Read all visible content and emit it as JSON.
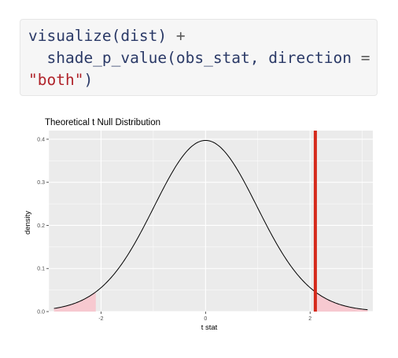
{
  "code": {
    "line1": {
      "fn": "visualize",
      "open": "(",
      "arg": "dist",
      "close": ")",
      "op": " +"
    },
    "line2": {
      "indent": "  ",
      "fn": "shade_p_value",
      "open": "(",
      "arg": "obs_stat,",
      "space": " ",
      "param": "direction",
      "eq": " ="
    },
    "line3": {
      "value": "\"both\"",
      "close": ")"
    }
  },
  "colors": {
    "panel": "#ebebeb",
    "grid": "#ffffff",
    "curve": "#000000",
    "shade": "#f7c9d0",
    "obs_line": "#d52a1c",
    "code_fn": "#2b3a67",
    "code_string": "#b0232a"
  },
  "chart_data": {
    "type": "line",
    "title": "Theoretical t Null Distribution",
    "xlabel": "t stat",
    "ylabel": "density",
    "distribution": "t",
    "df": 60,
    "x_range": [
      -2.9,
      3.1
    ],
    "xlim": [
      -3.0,
      3.2
    ],
    "ylim": [
      0,
      0.42
    ],
    "x_ticks": [
      -2,
      0,
      2
    ],
    "x_tick_labels": [
      "-2",
      "0",
      "2"
    ],
    "y_ticks": [
      0.0,
      0.1,
      0.2,
      0.3,
      0.4
    ],
    "y_tick_labels": [
      "0.0",
      "0.1",
      "0.2",
      "0.3",
      "0.4"
    ],
    "grid": true,
    "obs_stat": 2.1,
    "shade_direction": "both",
    "shaded_regions": [
      [
        -2.9,
        -2.1
      ],
      [
        2.1,
        3.1
      ]
    ]
  }
}
